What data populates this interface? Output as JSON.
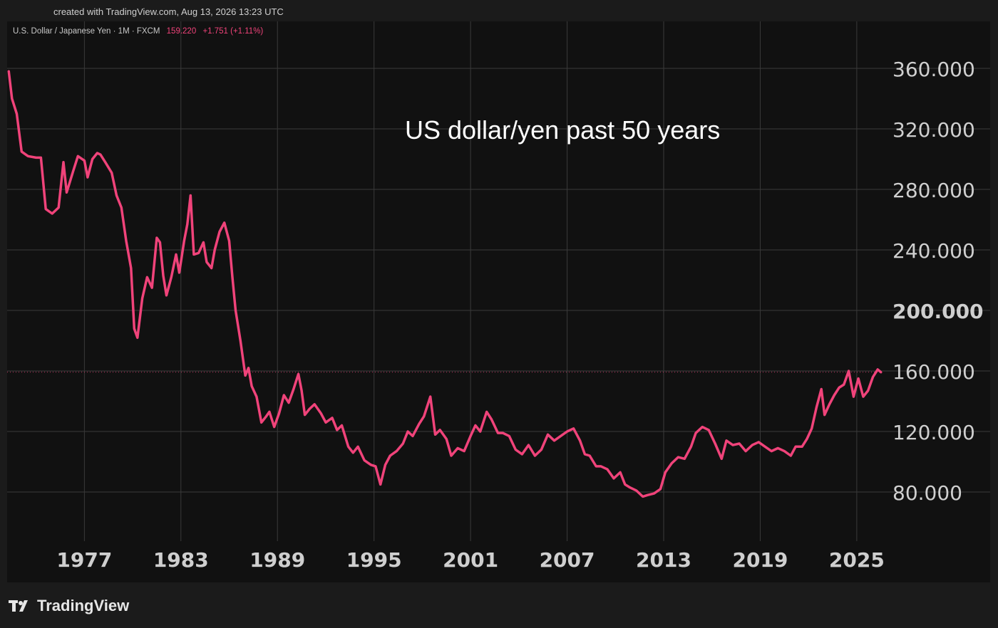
{
  "header": {
    "created_text": "created with TradingView.com, Aug 13, 2026 13:23 UTC"
  },
  "legend": {
    "symbol": "U.S. Dollar / Japanese Yen · 1M · FXCM",
    "last": "159.220",
    "change": "+1.751 (+1.11%)"
  },
  "footer": {
    "brand": "TradingView"
  },
  "colors": {
    "line": "#f0437a",
    "background": "#111111",
    "grid": "#3a3a3a",
    "text": "#cfcfcf"
  },
  "chart_data": {
    "type": "line",
    "title": "US dollar/yen past 50 years",
    "xlabel": "",
    "ylabel": "",
    "xlim": [
      1972.2,
      2026.6
    ],
    "ylim": [
      45,
      380
    ],
    "x_ticks": [
      "1977",
      "1983",
      "1989",
      "1995",
      "2001",
      "2007",
      "2013",
      "2019",
      "2025"
    ],
    "y_ticks": [
      "80.000",
      "120.000",
      "160.000",
      "200.000",
      "240.000",
      "280.000",
      "320.000",
      "360.000"
    ],
    "bold_y_tick": "200.000",
    "reference_line": 159.22,
    "grid": true,
    "series": [
      {
        "points": [
          [
            1972.3,
            358
          ],
          [
            1972.5,
            340
          ],
          [
            1972.8,
            330
          ],
          [
            1973.1,
            305
          ],
          [
            1973.5,
            302
          ],
          [
            1974,
            301
          ],
          [
            1974.3,
            301
          ],
          [
            1974.6,
            267
          ],
          [
            1975,
            264
          ],
          [
            1975.4,
            268
          ],
          [
            1975.7,
            298
          ],
          [
            1975.9,
            278
          ],
          [
            1976.3,
            292
          ],
          [
            1976.6,
            302
          ],
          [
            1977,
            299
          ],
          [
            1977.2,
            288
          ],
          [
            1977.5,
            300
          ],
          [
            1977.8,
            304
          ],
          [
            1978,
            303
          ],
          [
            1978.3,
            298
          ],
          [
            1978.7,
            291
          ],
          [
            1979,
            276
          ],
          [
            1979.3,
            268
          ],
          [
            1979.6,
            246
          ],
          [
            1979.9,
            228
          ],
          [
            1980.1,
            188
          ],
          [
            1980.3,
            182
          ],
          [
            1980.6,
            208
          ],
          [
            1980.9,
            222
          ],
          [
            1981.2,
            215
          ],
          [
            1981.5,
            248
          ],
          [
            1981.7,
            245
          ],
          [
            1981.9,
            223
          ],
          [
            1982.1,
            210
          ],
          [
            1982.4,
            222
          ],
          [
            1982.7,
            237
          ],
          [
            1982.9,
            225
          ],
          [
            1983.2,
            246
          ],
          [
            1983.4,
            257
          ],
          [
            1983.6,
            276
          ],
          [
            1983.8,
            237
          ],
          [
            1984.1,
            238
          ],
          [
            1984.4,
            245
          ],
          [
            1984.6,
            232
          ],
          [
            1984.9,
            228
          ],
          [
            1985.1,
            240
          ],
          [
            1985.4,
            252
          ],
          [
            1985.7,
            258
          ],
          [
            1986,
            246
          ],
          [
            1986.2,
            222
          ],
          [
            1986.4,
            200
          ],
          [
            1986.7,
            180
          ],
          [
            1987,
            157
          ],
          [
            1987.2,
            162
          ],
          [
            1987.4,
            150
          ],
          [
            1987.7,
            143
          ],
          [
            1988,
            126
          ],
          [
            1988.3,
            130
          ],
          [
            1988.5,
            133
          ],
          [
            1988.8,
            123
          ],
          [
            1989.1,
            132
          ],
          [
            1989.4,
            144
          ],
          [
            1989.7,
            139
          ],
          [
            1990,
            148
          ],
          [
            1990.3,
            158
          ],
          [
            1990.5,
            147
          ],
          [
            1990.7,
            131
          ],
          [
            1991,
            135
          ],
          [
            1991.3,
            138
          ],
          [
            1991.7,
            132
          ],
          [
            1992,
            126
          ],
          [
            1992.4,
            129
          ],
          [
            1992.7,
            121
          ],
          [
            1993,
            124
          ],
          [
            1993.4,
            110
          ],
          [
            1993.7,
            106
          ],
          [
            1994,
            110
          ],
          [
            1994.4,
            101
          ],
          [
            1994.8,
            98
          ],
          [
            1995.1,
            97
          ],
          [
            1995.4,
            85
          ],
          [
            1995.7,
            98
          ],
          [
            1996,
            104
          ],
          [
            1996.4,
            107
          ],
          [
            1996.8,
            112
          ],
          [
            1997.1,
            120
          ],
          [
            1997.4,
            117
          ],
          [
            1997.8,
            125
          ],
          [
            1998.1,
            130
          ],
          [
            1998.5,
            143
          ],
          [
            1998.8,
            118
          ],
          [
            1999.1,
            121
          ],
          [
            1999.5,
            115
          ],
          [
            1999.8,
            104
          ],
          [
            2000.2,
            109
          ],
          [
            2000.6,
            107
          ],
          [
            2001,
            117
          ],
          [
            2001.3,
            124
          ],
          [
            2001.6,
            120
          ],
          [
            2002,
            133
          ],
          [
            2002.3,
            128
          ],
          [
            2002.7,
            119
          ],
          [
            2003,
            119
          ],
          [
            2003.4,
            117
          ],
          [
            2003.8,
            108
          ],
          [
            2004.2,
            105
          ],
          [
            2004.6,
            111
          ],
          [
            2005,
            104
          ],
          [
            2005.4,
            108
          ],
          [
            2005.8,
            118
          ],
          [
            2006.2,
            114
          ],
          [
            2006.6,
            117
          ],
          [
            2007,
            120
          ],
          [
            2007.4,
            122
          ],
          [
            2007.8,
            114
          ],
          [
            2008.1,
            105
          ],
          [
            2008.4,
            104
          ],
          [
            2008.8,
            97
          ],
          [
            2009.1,
            97
          ],
          [
            2009.5,
            95
          ],
          [
            2009.9,
            89
          ],
          [
            2010.3,
            93
          ],
          [
            2010.6,
            85
          ],
          [
            2010.9,
            83
          ],
          [
            2011.3,
            81
          ],
          [
            2011.7,
            77
          ],
          [
            2012,
            78
          ],
          [
            2012.4,
            79
          ],
          [
            2012.8,
            82
          ],
          [
            2013.1,
            93
          ],
          [
            2013.5,
            99
          ],
          [
            2013.9,
            103
          ],
          [
            2014.3,
            102
          ],
          [
            2014.7,
            110
          ],
          [
            2015,
            119
          ],
          [
            2015.4,
            123
          ],
          [
            2015.8,
            121
          ],
          [
            2016.2,
            112
          ],
          [
            2016.6,
            102
          ],
          [
            2016.9,
            114
          ],
          [
            2017.3,
            111
          ],
          [
            2017.7,
            112
          ],
          [
            2018.1,
            107
          ],
          [
            2018.5,
            111
          ],
          [
            2018.9,
            113
          ],
          [
            2019.3,
            110
          ],
          [
            2019.7,
            107
          ],
          [
            2020.1,
            109
          ],
          [
            2020.5,
            107
          ],
          [
            2020.9,
            104
          ],
          [
            2021.2,
            110
          ],
          [
            2021.6,
            110
          ],
          [
            2021.9,
            115
          ],
          [
            2022.2,
            122
          ],
          [
            2022.5,
            136
          ],
          [
            2022.8,
            148
          ],
          [
            2023,
            131
          ],
          [
            2023.3,
            138
          ],
          [
            2023.6,
            144
          ],
          [
            2023.9,
            149
          ],
          [
            2024.2,
            151
          ],
          [
            2024.5,
            160
          ],
          [
            2024.8,
            143
          ],
          [
            2025.1,
            155
          ],
          [
            2025.4,
            143
          ],
          [
            2025.7,
            147
          ],
          [
            2026,
            156
          ],
          [
            2026.3,
            161
          ],
          [
            2026.5,
            159.2
          ]
        ]
      }
    ]
  }
}
